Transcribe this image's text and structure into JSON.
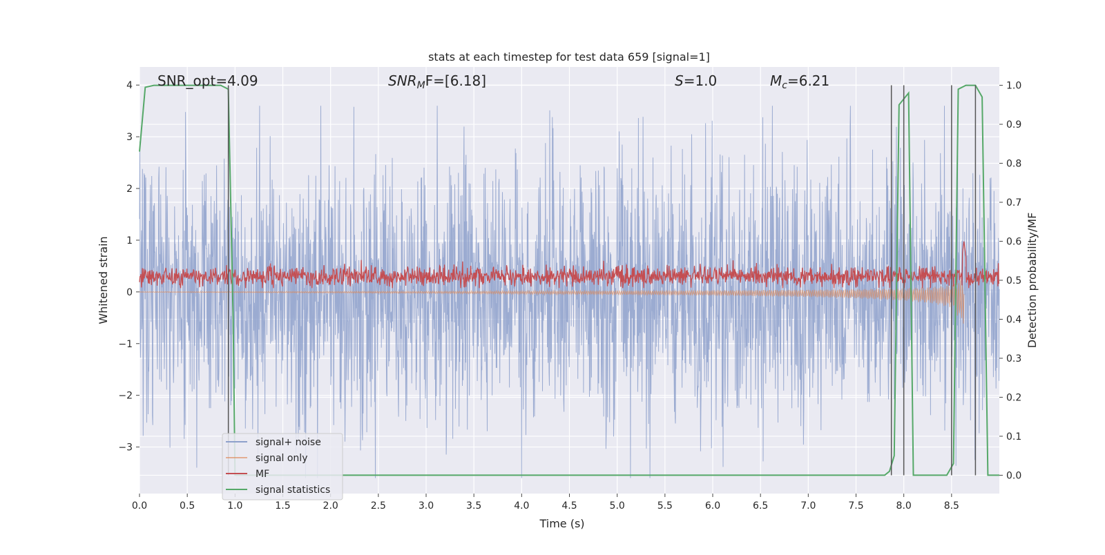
{
  "chart_data": {
    "type": "line",
    "title": "stats at each timestep for test data 659 [signal=1]",
    "xlabel": "Time (s)",
    "ylabel": "Whitened strain",
    "ylabel_right": "Detection probability/MF",
    "xlim": [
      0.0,
      9.0
    ],
    "ylim": [
      -3.9,
      4.35
    ],
    "ylim_right": [
      -0.047,
      1.047
    ],
    "x_ticks": [
      "0.0",
      "0.5",
      "1.0",
      "1.5",
      "2.0",
      "2.5",
      "3.0",
      "3.5",
      "4.0",
      "4.5",
      "5.0",
      "5.5",
      "6.0",
      "6.5",
      "7.0",
      "7.5",
      "8.0",
      "8.5"
    ],
    "y_ticks": [
      "4",
      "3",
      "2",
      "1",
      "0",
      "−1",
      "−2",
      "−3"
    ],
    "y_ticks_right": [
      "1.0",
      "0.9",
      "0.8",
      "0.7",
      "0.6",
      "0.5",
      "0.4",
      "0.3",
      "0.2",
      "0.1",
      "0.0"
    ],
    "annotations": {
      "snr_opt": "SNR_opt=4.09",
      "snr_mf_italic": "SNR",
      "snr_mf_sub": "M",
      "snr_mf_tail": "F=[6.18]",
      "s_italic": "S",
      "s_value": "=1.0",
      "mc_italic": "M",
      "mc_sub": "c",
      "mc_value": "=6.21"
    },
    "legend": {
      "placement": "lower-left",
      "entries": [
        "signal+ noise",
        "signal only",
        "MF",
        "signal statistics"
      ]
    },
    "colors": {
      "background": "#eaeaf2",
      "grid": "#ffffff",
      "signal_noise": "#8da0cb",
      "signal_only": "#dd8452",
      "mf": "#c44e52",
      "signal_statistics": "#55a868",
      "vlines": "#555555"
    },
    "series": [
      {
        "name": "signal+ noise",
        "axis": "left",
        "description_values": "white noise ~ N(0,1), range approx [-3.6, 3.6]"
      },
      {
        "name": "signal only",
        "axis": "left",
        "x": [
          0.0,
          1.0,
          3.0,
          5.0,
          6.0,
          7.0,
          7.5,
          8.0,
          8.3,
          8.5,
          8.63
        ],
        "envelope": [
          0.005,
          0.01,
          0.02,
          0.04,
          0.05,
          0.07,
          0.09,
          0.12,
          0.16,
          0.22,
          0.45
        ]
      },
      {
        "name": "MF",
        "axis": "right",
        "baseline": 0.51,
        "spread": [
          0.48,
          0.56
        ],
        "peak": {
          "x": 8.63,
          "y": 0.6
        }
      },
      {
        "name": "signal statistics",
        "axis": "right",
        "x": [
          0.0,
          0.06,
          0.15,
          0.3,
          0.5,
          0.7,
          0.85,
          0.93,
          0.98,
          1.0,
          7.8,
          7.85,
          7.9,
          7.95,
          8.05,
          8.1,
          8.4,
          8.45,
          8.52,
          8.57,
          8.65,
          8.75,
          8.82,
          8.88,
          8.93,
          9.0
        ],
        "values": [
          0.83,
          0.995,
          1.0,
          1.0,
          1.0,
          1.0,
          1.0,
          0.99,
          0.4,
          0.0,
          0.0,
          0.01,
          0.05,
          0.95,
          0.98,
          0.0,
          0.0,
          0.0,
          0.03,
          0.99,
          1.0,
          1.0,
          0.97,
          0.0,
          0.0,
          0.0
        ]
      }
    ],
    "vertical_lines_x": [
      0.93,
      7.87,
      8.0,
      8.5,
      8.75
    ]
  }
}
